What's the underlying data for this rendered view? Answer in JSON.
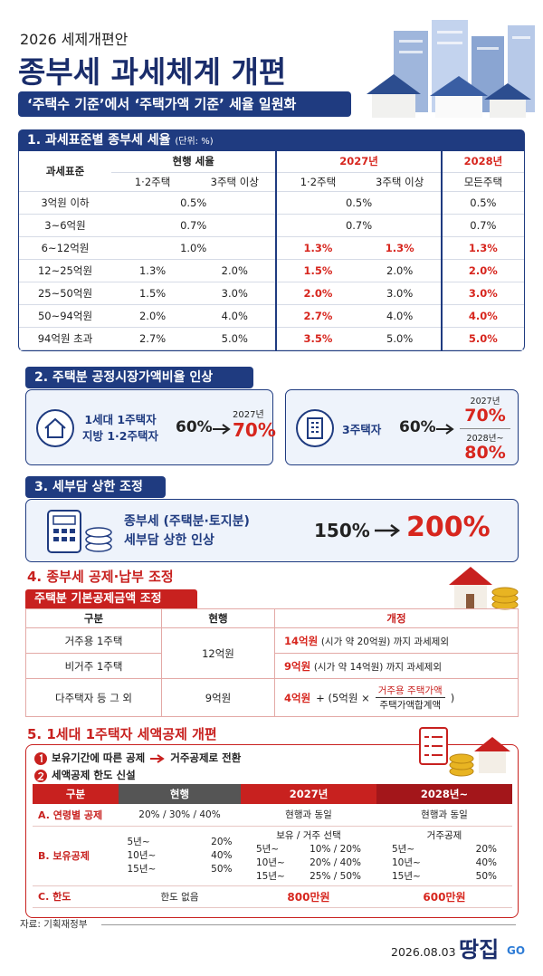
{
  "header": {
    "subtitle": "2026 세제개편안",
    "title": "종부세 과세체계 개편",
    "banner": "‘주택수 기준’에서 ‘주택가액 기준’ 세율 일원화"
  },
  "section1": {
    "title": "1. 과세표준별 종부세 세율",
    "unit": "(단위: %)",
    "headers": [
      "과세표준",
      "현행 세율",
      "2027년",
      "2028년"
    ],
    "subheaders": [
      "1·2주택",
      "3주택 이상",
      "1·2주택",
      "3주택 이상",
      "모든주택"
    ],
    "rows": [
      {
        "label": "3억원 이하",
        "current": [
          "0.5%"
        ],
        "y2027": [
          "0.5%"
        ],
        "y2028": [
          "0.5%"
        ]
      },
      {
        "label": "3~6억원",
        "current": [
          "0.7%"
        ],
        "y2027": [
          "0.7%"
        ],
        "y2028": [
          "0.7%"
        ]
      },
      {
        "label": "6~12억원",
        "current": [
          "1.0%"
        ],
        "y2027": [
          {
            "text": "1.3%",
            "color": "#d7261e"
          },
          {
            "text": "1.3%",
            "color": "#d7261e"
          }
        ],
        "y2028": [
          {
            "text": "1.3%",
            "color": "#d7261e"
          }
        ]
      },
      {
        "label": "12~25억원",
        "current": [
          "1.3%",
          "2.0%"
        ],
        "y2027": [
          {
            "text": "1.5%",
            "color": "#d7261e"
          },
          "2.0%"
        ],
        "y2028": [
          {
            "text": "2.0%",
            "color": "#d7261e"
          }
        ]
      },
      {
        "label": "25~50억원",
        "current": [
          "1.5%",
          "3.0%"
        ],
        "y2027": [
          {
            "text": "2.0%",
            "color": "#d7261e"
          },
          "3.0%"
        ],
        "y2028": [
          {
            "text": "3.0%",
            "color": "#d7261e"
          }
        ]
      },
      {
        "label": "50~94억원",
        "current": [
          "2.0%",
          "4.0%"
        ],
        "y2027": [
          {
            "text": "2.7%",
            "color": "#d7261e"
          },
          "4.0%"
        ],
        "y2028": [
          {
            "text": "4.0%",
            "color": "#d7261e"
          }
        ]
      },
      {
        "label": "94억원 초과",
        "current": [
          "2.7%",
          "5.0%"
        ],
        "y2027": [
          {
            "text": "3.5%",
            "color": "#d7261e"
          },
          "5.0%"
        ],
        "y2028": [
          {
            "text": "5.0%",
            "color": "#d7261e"
          }
        ]
      }
    ]
  },
  "section2": {
    "title": "2. 주택분 공정시장가액비율 인상",
    "boxes": [
      {
        "label": [
          "1세대 1주택자",
          "지방 1·2주택자"
        ],
        "from": "60%",
        "steps": [
          {
            "year": "2027년",
            "value": "70%"
          }
        ]
      },
      {
        "label": [
          "3주택자"
        ],
        "from": "60%",
        "steps": [
          {
            "year": "2027년",
            "value": "70%"
          },
          {
            "year": "2028년~",
            "value": "80%"
          }
        ]
      }
    ]
  },
  "section3": {
    "title": "3. 세부담 상한 조정",
    "lines": [
      "종부세 (주택분·토지분)",
      "세부담 상한 인상"
    ],
    "from": "150%",
    "to": "200%"
  },
  "section4": {
    "title": "4. 종부세 공제·납부 조정",
    "subtitle": "주택분 기본공제금액 조정",
    "headers": [
      "구분",
      "현행",
      "개정"
    ],
    "rows": [
      {
        "label": "거주용 1주택",
        "current": "12억원",
        "revised": "14억원",
        "note": "(시가 약 20억원) 까지 과세제외"
      },
      {
        "label": "비거주 1주택",
        "revised": "9억원",
        "note": "(시가 약 14억원) 까지 과세제외"
      },
      {
        "label": "다주택자 등 그 외",
        "current": "9억원",
        "revised": "4억원",
        "formula": {
          "prefix": "+ (5억원 ×",
          "numerator": "거주용 주택가액",
          "denominator": "주택가액합계액",
          "suffix": ")"
        }
      }
    ]
  },
  "section5": {
    "title": "5. 1세대 1주택자 세액공제 개편",
    "notes": [
      {
        "text": "보유기간에 따른 공제",
        "result": "거주공제로 전환"
      },
      {
        "text": "세액공제 한도 신설"
      }
    ],
    "headers": [
      "구분",
      "현행",
      "2027년",
      "2028년~"
    ],
    "rows": [
      {
        "label": "A. 연령별 공제",
        "cells": [
          {
            "text": "20% / 30% / 40%"
          },
          {
            "text": "현행과 동일"
          },
          {
            "text": "현행과 동일"
          }
        ]
      },
      {
        "label": "B. 보유공제",
        "cells": [
          {
            "lines": [
              [
                "5년~",
                "20%"
              ],
              [
                "10년~",
                "40%"
              ],
              [
                "15년~",
                "50%"
              ]
            ]
          },
          {
            "caption": "보유 / 거주 선택",
            "lines": [
              [
                "5년~",
                "10% / 20%"
              ],
              [
                "10년~",
                "20% / 40%"
              ],
              [
                "15년~",
                "25% / 50%"
              ]
            ]
          },
          {
            "caption": "거주공제",
            "lines": [
              [
                "5년~",
                "20%"
              ],
              [
                "10년~",
                "40%"
              ],
              [
                "15년~",
                "50%"
              ]
            ]
          }
        ]
      },
      {
        "label": "C. 한도",
        "cells": [
          {
            "text": "한도 없음"
          },
          {
            "text": "800만원",
            "color": "#d7261e"
          },
          {
            "text": "600만원",
            "color": "#d7261e"
          }
        ]
      }
    ]
  },
  "footer": {
    "source": "자료: 기획재정부",
    "date": "2026.08.03",
    "logo": "땅집",
    "logo_sub": "GO"
  }
}
